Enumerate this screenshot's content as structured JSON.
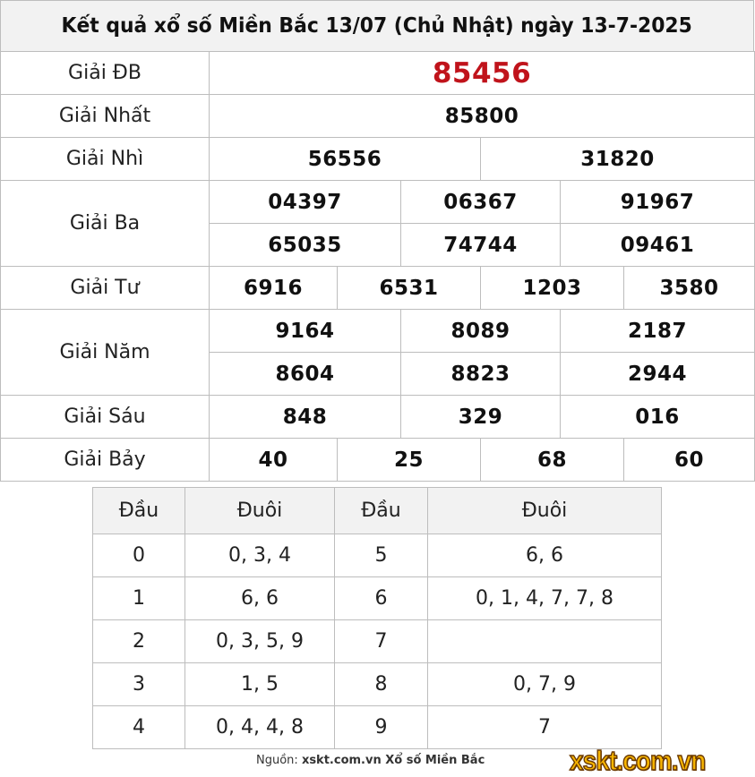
{
  "title": "Kết quả xổ số Miền Bắc 13/07 (Chủ Nhật) ngày 13-7-2025",
  "prizes": {
    "db": {
      "label": "Giải ĐB",
      "values": [
        "85456"
      ]
    },
    "nhat": {
      "label": "Giải Nhất",
      "values": [
        "85800"
      ]
    },
    "nhi": {
      "label": "Giải Nhì",
      "values": [
        "56556",
        "31820"
      ]
    },
    "ba": {
      "label": "Giải Ba",
      "values": [
        "04397",
        "06367",
        "91967",
        "65035",
        "74744",
        "09461"
      ]
    },
    "tu": {
      "label": "Giải Tư",
      "values": [
        "6916",
        "6531",
        "1203",
        "3580"
      ]
    },
    "nam": {
      "label": "Giải Năm",
      "values": [
        "9164",
        "8089",
        "2187",
        "8604",
        "8823",
        "2944"
      ]
    },
    "sau": {
      "label": "Giải Sáu",
      "values": [
        "848",
        "329",
        "016"
      ]
    },
    "bay": {
      "label": "Giải Bảy",
      "values": [
        "40",
        "25",
        "68",
        "60"
      ]
    }
  },
  "loto": {
    "headers": [
      "Đầu",
      "Đuôi",
      "Đầu",
      "Đuôi"
    ],
    "rows": [
      [
        "0",
        "0, 3, 4",
        "5",
        "6, 6"
      ],
      [
        "1",
        "6, 6",
        "6",
        "0, 1, 4, 7, 7, 8"
      ],
      [
        "2",
        "0, 3, 5, 9",
        "7",
        ""
      ],
      [
        "3",
        "1, 5",
        "8",
        "0, 7, 9"
      ],
      [
        "4",
        "0, 4, 4, 8",
        "9",
        "7"
      ]
    ]
  },
  "source": {
    "prefix": "Nguồn:",
    "site": "xskt.com.vn Xổ số Miền Bắc"
  },
  "logo_text": "xskt.com.vn",
  "colors": {
    "special_prize": "#c0131b",
    "header_bg": "#f2f2f2",
    "logo": "#f7b500"
  }
}
